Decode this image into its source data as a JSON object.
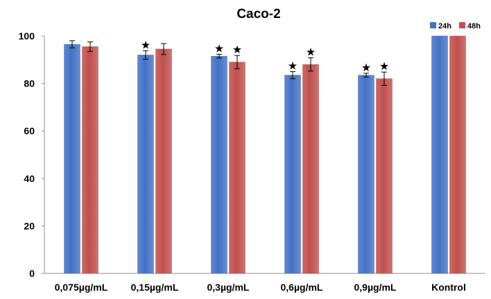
{
  "chart_data": {
    "type": "bar",
    "title": "Caco-2",
    "categories": [
      "0,075µg/mL",
      "0,15µg/mL",
      "0,3µg/mL",
      "0,6µg/mL",
      "0,9µg/mL",
      "Kontrol"
    ],
    "series": [
      {
        "name": "24h",
        "color": "#4472c4",
        "values": [
          96.5,
          92,
          91.5,
          83.5,
          83.5,
          100
        ],
        "errors": [
          1.5,
          1.8,
          0.8,
          1.5,
          0.8,
          0
        ],
        "significant": [
          false,
          true,
          true,
          true,
          true,
          false
        ]
      },
      {
        "name": "48h",
        "color": "#c0504d",
        "values": [
          95.5,
          94.5,
          89,
          88,
          82,
          100
        ],
        "errors": [
          2,
          2.3,
          2.8,
          2.8,
          2.8,
          0
        ],
        "significant": [
          false,
          false,
          true,
          true,
          true,
          false
        ]
      }
    ],
    "y_ticks": [
      "0",
      "20",
      "40",
      "60",
      "80",
      "100"
    ],
    "ylim": [
      0,
      100
    ],
    "significance_marker": "★",
    "legend_position": "top-right",
    "grid": false
  }
}
